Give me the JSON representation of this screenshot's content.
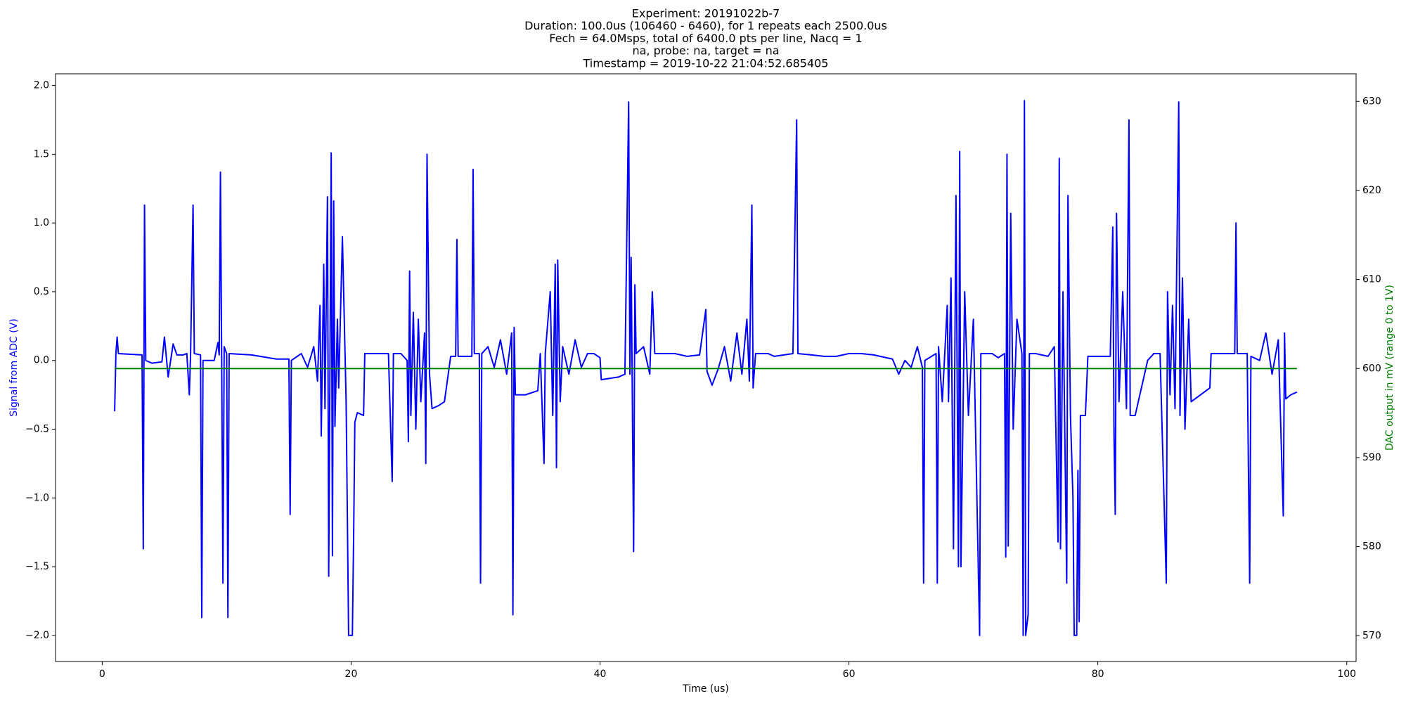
{
  "chart_data": {
    "type": "line",
    "title_lines": [
      "Experiment: 20191022b-7",
      "Duration: 100.0us (106460 - 6460), for 1 repeats each 2500.0us",
      "Fech = 64.0Msps, total of 6400.0 pts per line, Nacq = 1",
      "na, probe: na, target = na",
      "Timestamp = 2019-10-22 21:04:52.685405"
    ],
    "xlabel": "Time (us)",
    "ylabel": "Signal from ADC (V)",
    "y2label": "DAC output in mV (range 0 to 1V)",
    "xlim": [
      -3.75,
      100.75
    ],
    "xticks": [
      0,
      20,
      40,
      60,
      80,
      100
    ],
    "ylim": [
      -2.19,
      2.085
    ],
    "yticks": [
      {
        "value": -2,
        "label": "−2.0"
      },
      {
        "value": -1.5,
        "label": "−1.5"
      },
      {
        "value": -1,
        "label": "−1.0"
      },
      {
        "value": -0.5,
        "label": "−0.5"
      },
      {
        "value": 0,
        "label": "0.0"
      },
      {
        "value": 0.5,
        "label": "0.5"
      },
      {
        "value": 1,
        "label": "1.0"
      },
      {
        "value": 1.5,
        "label": "1.5"
      },
      {
        "value": 2,
        "label": "2.0"
      }
    ],
    "y2lim": [
      567.1,
      633.1
    ],
    "y2ticks": [
      570,
      580,
      590,
      600,
      610,
      620,
      630
    ],
    "series": [
      {
        "color": "#0000ff",
        "x": [
          1.0,
          1.1,
          1.2,
          1.3,
          3.2,
          3.3,
          3.4,
          3.5,
          4.0,
          4.8,
          5.0,
          5.3,
          5.7,
          6.0,
          6.5,
          6.8,
          7.0,
          7.1,
          7.3,
          7.4,
          7.9,
          8.0,
          8.1,
          9.0,
          9.3,
          9.4,
          9.5,
          9.6,
          9.7,
          9.8,
          10.0,
          10.1,
          10.2,
          12.0,
          14.0,
          15.0,
          15.1,
          15.2,
          16.0,
          16.5,
          17.0,
          17.3,
          17.5,
          17.6,
          17.8,
          17.9,
          18.1,
          18.2,
          18.4,
          18.5,
          18.6,
          18.7,
          18.9,
          19.0,
          19.3,
          19.6,
          19.8,
          20.1,
          20.2,
          20.3,
          20.5,
          21.0,
          21.1,
          22.0,
          23.0,
          23.3,
          23.4,
          24.0,
          24.5,
          24.6,
          24.7,
          24.8,
          25.0,
          25.2,
          25.4,
          25.6,
          25.9,
          26.0,
          26.1,
          26.3,
          26.5,
          27.0,
          27.5,
          28.0,
          28.4,
          28.5,
          28.6,
          29.7,
          29.8,
          29.9,
          30.3,
          30.4,
          30.5,
          31.0,
          31.5,
          32.0,
          32.5,
          32.9,
          33.0,
          33.1,
          33.2,
          34.0,
          35.0,
          35.2,
          35.5,
          35.6,
          36.0,
          36.2,
          36.4,
          36.5,
          36.6,
          36.8,
          37.0,
          37.5,
          38.0,
          38.5,
          39.0,
          39.5,
          40.0,
          40.1,
          41.5,
          42.0,
          42.3,
          42.4,
          42.5,
          42.7,
          42.8,
          42.9,
          43.5,
          44.0,
          44.2,
          44.4,
          46.0,
          47.0,
          48.0,
          48.5,
          48.6,
          49.0,
          49.5,
          50.0,
          50.5,
          51.0,
          51.4,
          51.8,
          52.0,
          52.2,
          52.3,
          52.5,
          53.5,
          54.0,
          55.5,
          55.8,
          55.9,
          57.0,
          58.0,
          59.0,
          60.0,
          61.0,
          62.0,
          63.5,
          64.0,
          64.5,
          65.0,
          65.5,
          65.9,
          66.0,
          66.1,
          67.0,
          67.1,
          67.2,
          67.5,
          67.9,
          68.0,
          68.2,
          68.4,
          68.6,
          68.8,
          68.9,
          69.0,
          69.3,
          69.6,
          70.0,
          70.5,
          70.6,
          71.5,
          72.0,
          72.5,
          72.6,
          72.7,
          72.8,
          73.0,
          73.2,
          73.5,
          73.9,
          74.0,
          74.1,
          74.2,
          74.4,
          74.5,
          75.0,
          76.0,
          76.5,
          76.8,
          76.9,
          77.0,
          77.2,
          77.5,
          77.6,
          77.8,
          78.0,
          78.1,
          78.3,
          78.4,
          78.5,
          78.6,
          79.0,
          79.2,
          81.0,
          81.2,
          81.3,
          81.4,
          81.5,
          81.7,
          82.0,
          82.3,
          82.5,
          82.6,
          83.0,
          84.0,
          84.5,
          85.0,
          85.5,
          85.6,
          85.8,
          86.0,
          86.2,
          86.5,
          86.6,
          86.8,
          87.0,
          87.3,
          87.5,
          89.0,
          89.1,
          91.0,
          91.1,
          91.2,
          92.0,
          92.2,
          92.3,
          93.0,
          93.5,
          94.0,
          94.5,
          94.9,
          95.0,
          95.1,
          95.5,
          96.0
        ],
        "values": [
          -0.37,
          0.05,
          0.17,
          0.05,
          0.04,
          -1.37,
          1.13,
          0.0,
          -0.02,
          -0.01,
          0.17,
          -0.12,
          0.12,
          0.04,
          0.04,
          0.05,
          -0.25,
          0.04,
          1.13,
          0.05,
          0.04,
          -1.87,
          0.0,
          0.0,
          0.13,
          0.04,
          1.37,
          0.0,
          -1.62,
          0.1,
          0.05,
          -1.87,
          0.05,
          0.04,
          0.01,
          0.01,
          -1.12,
          0.0,
          0.05,
          -0.05,
          0.1,
          -0.15,
          0.4,
          -0.55,
          0.7,
          -0.35,
          1.19,
          -1.57,
          1.51,
          -1.42,
          1.16,
          -0.48,
          0.3,
          -0.2,
          0.9,
          -0.3,
          -2.0,
          -2.0,
          -1.3,
          -0.45,
          -0.38,
          -0.4,
          0.05,
          0.05,
          0.05,
          -0.88,
          0.05,
          0.05,
          0.0,
          -0.59,
          0.65,
          -0.4,
          0.35,
          -0.5,
          0.3,
          -0.3,
          0.2,
          -0.75,
          1.5,
          -0.1,
          -0.35,
          -0.33,
          -0.3,
          0.03,
          0.03,
          0.88,
          0.03,
          0.03,
          1.39,
          0.05,
          0.05,
          -1.62,
          0.05,
          0.1,
          -0.05,
          0.15,
          -0.1,
          0.2,
          -1.85,
          0.24,
          -0.25,
          -0.25,
          -0.22,
          0.05,
          -0.75,
          0.05,
          0.5,
          -0.4,
          0.7,
          -0.78,
          0.73,
          -0.3,
          0.1,
          -0.1,
          0.15,
          -0.05,
          0.05,
          0.05,
          0.02,
          -0.14,
          -0.12,
          -0.1,
          1.88,
          -0.1,
          0.75,
          -1.39,
          0.55,
          0.05,
          0.1,
          -0.1,
          0.5,
          0.05,
          0.05,
          0.03,
          0.04,
          0.37,
          -0.08,
          -0.18,
          -0.06,
          0.1,
          -0.15,
          0.2,
          -0.1,
          0.3,
          -0.15,
          1.13,
          -0.2,
          0.05,
          0.05,
          0.03,
          0.05,
          1.75,
          0.05,
          0.04,
          0.03,
          0.03,
          0.05,
          0.05,
          0.04,
          0.01,
          -0.1,
          0.0,
          -0.05,
          0.1,
          -0.05,
          -1.62,
          0.0,
          0.05,
          -1.62,
          0.1,
          -0.3,
          0.4,
          -0.3,
          0.6,
          -1.37,
          1.2,
          -1.5,
          1.52,
          -1.5,
          0.5,
          -0.4,
          0.3,
          -2.0,
          0.05,
          0.05,
          0.02,
          0.05,
          -1.43,
          1.5,
          -1.35,
          1.07,
          -0.5,
          0.3,
          0.05,
          -2.0,
          1.89,
          -2.0,
          -1.85,
          0.05,
          0.05,
          0.03,
          0.1,
          -1.32,
          1.47,
          -1.37,
          0.5,
          -1.62,
          1.2,
          -0.4,
          -1.0,
          -2.0,
          -2.0,
          -0.8,
          -1.9,
          -0.4,
          -0.4,
          0.03,
          0.03,
          0.97,
          -0.55,
          -1.12,
          1.07,
          -0.3,
          0.5,
          -0.35,
          1.75,
          -0.4,
          -0.4,
          0.0,
          0.05,
          0.05,
          -1.62,
          0.5,
          -0.25,
          0.4,
          -0.35,
          1.88,
          -0.4,
          0.6,
          -0.5,
          0.3,
          -0.3,
          -0.2,
          0.05,
          0.05,
          1.0,
          0.05,
          0.05,
          -1.62,
          0.03,
          0.0,
          0.2,
          -0.1,
          0.15,
          -1.13,
          0.2,
          -0.28,
          -0.25,
          -0.23
        ]
      },
      {
        "color": "#008000",
        "axis": "y2",
        "x": [
          1.0,
          96.0
        ],
        "values": [
          600,
          600
        ]
      }
    ]
  }
}
